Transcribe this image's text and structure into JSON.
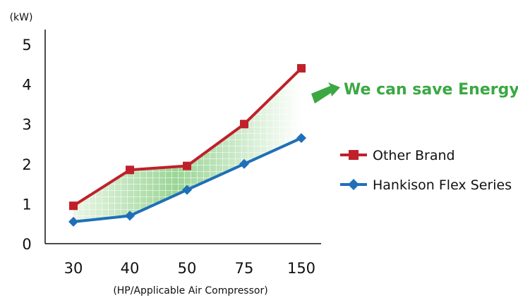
{
  "chart_data": {
    "type": "line",
    "ylabel": "(kW)",
    "xlabel": "(HP/Applicable Air Compressor)",
    "categories": [
      "30",
      "40",
      "50",
      "75",
      "150"
    ],
    "ylim": [
      0,
      5
    ],
    "yticks": [
      "0",
      "1",
      "2",
      "3",
      "4",
      "5"
    ],
    "series": [
      {
        "name": "Other Brand",
        "values": [
          0.95,
          1.85,
          1.95,
          3.0,
          4.4
        ],
        "color": "#c0202a",
        "marker": "square"
      },
      {
        "name": "Hankison Flex Series",
        "values": [
          0.55,
          0.7,
          1.35,
          2.0,
          2.65
        ],
        "color": "#1f6fb8",
        "marker": "diamond"
      }
    ],
    "shaded_area_between_series": true,
    "shade_color": "#5bb85f",
    "annotation": {
      "text": "We can save Energy",
      "color": "#3aa843"
    },
    "legend": "right",
    "grid": false
  }
}
